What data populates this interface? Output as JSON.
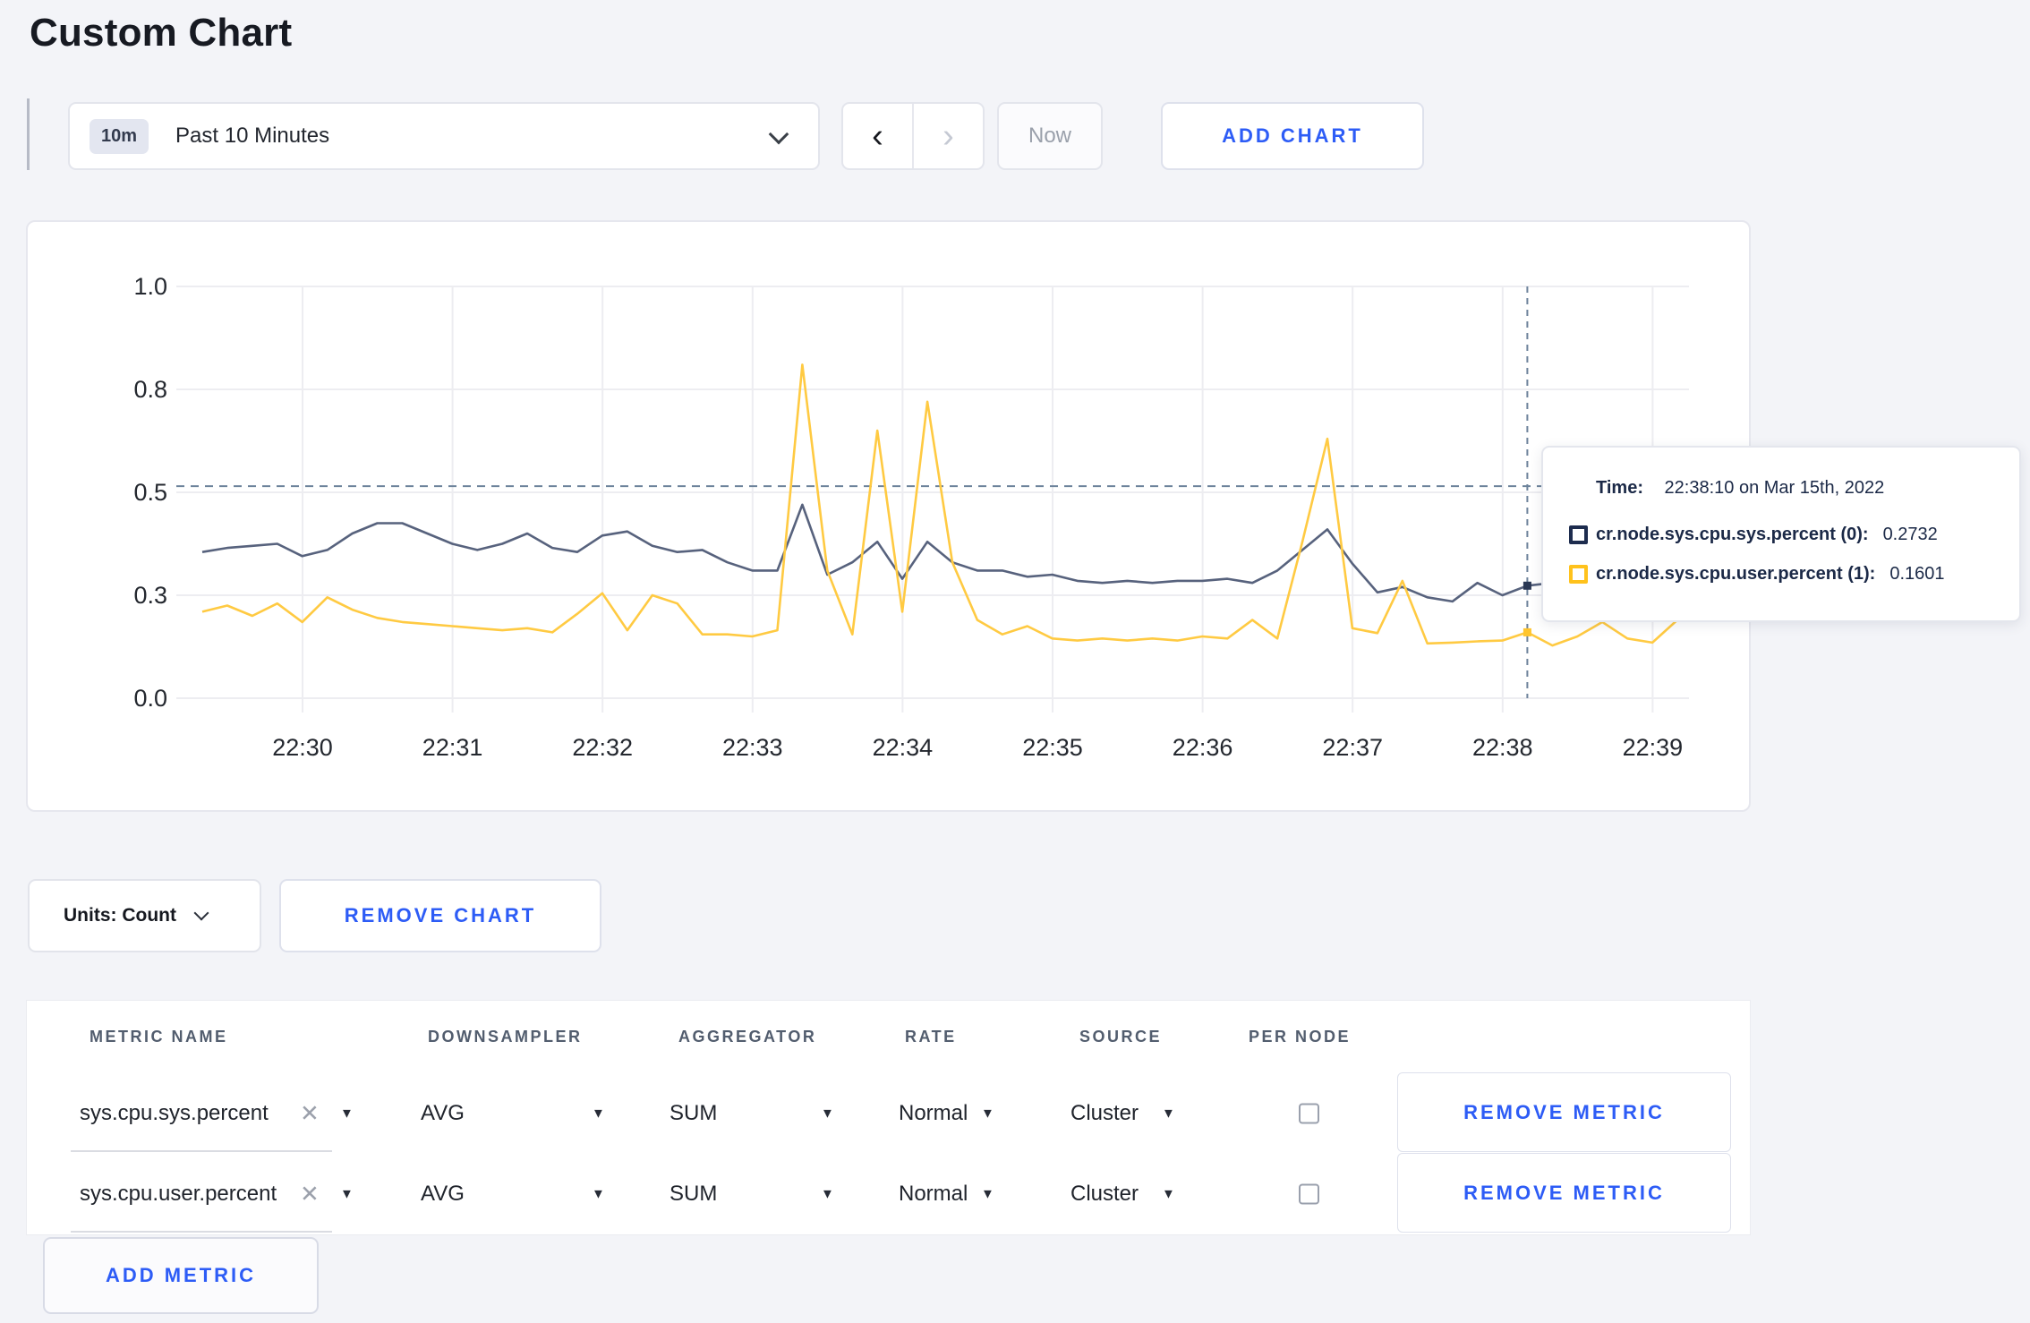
{
  "page": {
    "title": "Custom Chart"
  },
  "toolbar": {
    "range_badge": "10m",
    "range_label": "Past 10 Minutes",
    "prev_arrow": "‹",
    "next_arrow": "›",
    "now_label": "Now",
    "add_chart_label": "ADD CHART"
  },
  "chart_data": {
    "type": "line",
    "x_start": "22:29:20",
    "x_interval_seconds": 10,
    "x_tick_labels": [
      "22:30",
      "22:31",
      "22:32",
      "22:33",
      "22:34",
      "22:35",
      "22:36",
      "22:37",
      "22:38",
      "22:39"
    ],
    "y_tick_labels": [
      "0.0",
      "0.3",
      "0.5",
      "0.8",
      "1.0"
    ],
    "y_tick_values": [
      0,
      0.25,
      0.5,
      0.75,
      1.0
    ],
    "ylim": [
      0,
      1
    ],
    "grid": true,
    "series": [
      {
        "name": "cr.node.sys.cpu.sys.percent (0)",
        "color": "#57627d",
        "values": [
          0.355,
          0.365,
          0.37,
          0.375,
          0.345,
          0.36,
          0.4,
          0.425,
          0.425,
          0.4,
          0.375,
          0.36,
          0.375,
          0.4,
          0.365,
          0.355,
          0.395,
          0.405,
          0.37,
          0.355,
          0.36,
          0.33,
          0.31,
          0.31,
          0.47,
          0.3,
          0.33,
          0.38,
          0.29,
          0.38,
          0.33,
          0.31,
          0.31,
          0.295,
          0.3,
          0.285,
          0.28,
          0.285,
          0.28,
          0.285,
          0.285,
          0.29,
          0.28,
          0.31,
          0.36,
          0.41,
          0.327,
          0.257,
          0.27,
          0.245,
          0.235,
          0.28,
          0.25,
          0.2732,
          0.28,
          0.275,
          0.28,
          0.285,
          0.28,
          0.285
        ]
      },
      {
        "name": "cr.node.sys.cpu.user.percent (1)",
        "color": "#ffca42",
        "values": [
          0.21,
          0.225,
          0.2,
          0.23,
          0.185,
          0.245,
          0.215,
          0.195,
          0.185,
          0.18,
          0.175,
          0.17,
          0.165,
          0.17,
          0.16,
          0.205,
          0.255,
          0.165,
          0.25,
          0.23,
          0.155,
          0.155,
          0.15,
          0.165,
          0.81,
          0.31,
          0.155,
          0.65,
          0.21,
          0.72,
          0.33,
          0.19,
          0.155,
          0.175,
          0.145,
          0.14,
          0.145,
          0.14,
          0.145,
          0.14,
          0.15,
          0.145,
          0.19,
          0.145,
          0.38,
          0.63,
          0.17,
          0.158,
          0.285,
          0.133,
          0.135,
          0.138,
          0.14,
          0.1601,
          0.128,
          0.15,
          0.185,
          0.145,
          0.135,
          0.19
        ]
      }
    ],
    "annotations": {
      "crosshair_index": 53,
      "crosshair_time": "22:38:10",
      "hline_value": 0.515,
      "hover_marker_colors": [
        "#2a3854",
        "#ffc52e"
      ]
    }
  },
  "tooltip": {
    "time_label": "Time:",
    "time_value": "22:38:10 on Mar 15th, 2022",
    "rows": [
      {
        "name": "cr.node.sys.cpu.sys.percent (0):",
        "value": "0.2732",
        "color": "#1d2c4e"
      },
      {
        "name": "cr.node.sys.cpu.user.percent (1):",
        "value": "0.1601",
        "color": "#ffc21c"
      }
    ]
  },
  "controls": {
    "units_label": "Units: Count",
    "remove_chart_label": "REMOVE CHART",
    "add_metric_label": "ADD METRIC"
  },
  "table": {
    "headers": [
      "METRIC NAME",
      "DOWNSAMPLER",
      "AGGREGATOR",
      "RATE",
      "SOURCE",
      "PER NODE"
    ],
    "remove_icon": "✕",
    "caret_icon": "▼",
    "rows": [
      {
        "name": "sys.cpu.sys.percent",
        "downsampler": "AVG",
        "aggregator": "SUM",
        "rate": "Normal",
        "source": "Cluster",
        "per_node_checked": false,
        "remove_label": "REMOVE METRIC"
      },
      {
        "name": "sys.cpu.user.percent",
        "downsampler": "AVG",
        "aggregator": "SUM",
        "rate": "Normal",
        "source": "Cluster",
        "per_node_checked": false,
        "remove_label": "REMOVE METRIC"
      }
    ]
  },
  "colors": {
    "accent_blue": "#2d5cf6",
    "page_bg": "#f3f4f8",
    "grid_line": "#ededf1",
    "dashed_crosshair": "#6d839b",
    "axis_text": "#24282f"
  }
}
